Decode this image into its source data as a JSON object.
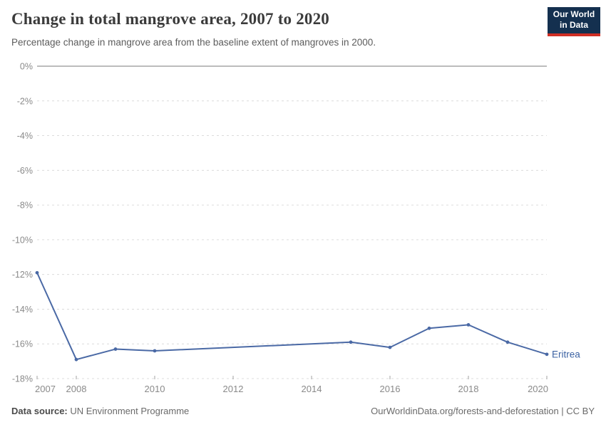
{
  "header": {
    "title": "Change in total mangrove area, 2007 to 2020",
    "subtitle": "Percentage change in mangrove area from the baseline extent of mangroves in 2000.",
    "logo": {
      "line1": "Our World",
      "line2": "in Data",
      "bg_color": "#14304f",
      "accent_color": "#cf2e24"
    }
  },
  "footer": {
    "source_label": "Data source:",
    "source_value": "UN Environment Programme",
    "link_text": "OurWorldinData.org/forests-and-deforestation | CC BY"
  },
  "chart_data": {
    "type": "line",
    "title": "Change in total mangrove area, 2007 to 2020",
    "subtitle": "Percentage change in mangrove area from the baseline extent of mangroves in 2000.",
    "xlabel": "",
    "ylabel": "",
    "xlim": [
      2007,
      2020
    ],
    "ylim": [
      -18,
      0
    ],
    "grid": "horizontal-dashed",
    "legend_position": "end-of-line-label",
    "series": [
      {
        "name": "Eritrea",
        "color": "#4a69a5",
        "points": [
          [
            2007,
            -11.9
          ],
          [
            2008,
            -16.9
          ],
          [
            2009,
            -16.3
          ],
          [
            2010,
            -16.4
          ],
          [
            2015,
            -15.9
          ],
          [
            2016,
            -16.2
          ],
          [
            2017,
            -15.1
          ],
          [
            2018,
            -14.9
          ],
          [
            2019,
            -15.9
          ],
          [
            2020,
            -16.6
          ]
        ]
      }
    ],
    "y_ticks": [
      {
        "value": 0,
        "label": "0%"
      },
      {
        "value": -2,
        "label": "-2%"
      },
      {
        "value": -4,
        "label": "-4%"
      },
      {
        "value": -6,
        "label": "-6%"
      },
      {
        "value": -8,
        "label": "-8%"
      },
      {
        "value": -10,
        "label": "-10%"
      },
      {
        "value": -12,
        "label": "-12%"
      },
      {
        "value": -14,
        "label": "-14%"
      },
      {
        "value": -16,
        "label": "-16%"
      },
      {
        "value": -18,
        "label": "-18%"
      }
    ],
    "x_ticks": [
      {
        "value": 2007,
        "label": "2007"
      },
      {
        "value": 2008,
        "label": "2008"
      },
      {
        "value": 2010,
        "label": "2010"
      },
      {
        "value": 2012,
        "label": "2012"
      },
      {
        "value": 2014,
        "label": "2014"
      },
      {
        "value": 2016,
        "label": "2016"
      },
      {
        "value": 2018,
        "label": "2018"
      },
      {
        "value": 2020,
        "label": "2020"
      }
    ],
    "colors": {
      "line": "#4a69a5",
      "grid": "#dcdcdc",
      "zero_axis": "#b3b3b3",
      "tick_text": "#8a8a8a",
      "tick_mark": "#a3a3a3",
      "entity_label": "#3d63a3"
    }
  }
}
